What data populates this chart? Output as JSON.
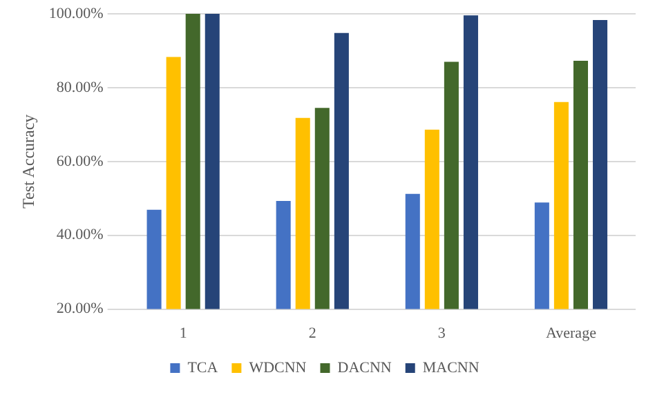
{
  "chart_data": {
    "type": "bar",
    "ylabel": "Test Accuracy",
    "categories": [
      "1",
      "2",
      "3",
      "Average"
    ],
    "series": [
      {
        "name": "TCA",
        "color": "#4472c4",
        "values": [
          46.9,
          49.3,
          51.2,
          48.9
        ]
      },
      {
        "name": "WDCNN",
        "color": "#ffc000",
        "values": [
          88.3,
          71.8,
          68.6,
          76.1
        ]
      },
      {
        "name": "DACNN",
        "color": "#43682b",
        "values": [
          100,
          74.5,
          87.0,
          87.3
        ]
      },
      {
        "name": "MACNN",
        "color": "#264478",
        "values": [
          100,
          94.8,
          99.6,
          98.3
        ]
      }
    ],
    "ylim": [
      20,
      100
    ],
    "yticks": [
      {
        "value": 20,
        "label": "20.00%"
      },
      {
        "value": 40,
        "label": "40.00%"
      },
      {
        "value": 60,
        "label": "60.00%"
      },
      {
        "value": 80,
        "label": "80.00%"
      },
      {
        "value": 100,
        "label": "100.00%"
      }
    ],
    "grid": "y",
    "legend": "bottom"
  }
}
